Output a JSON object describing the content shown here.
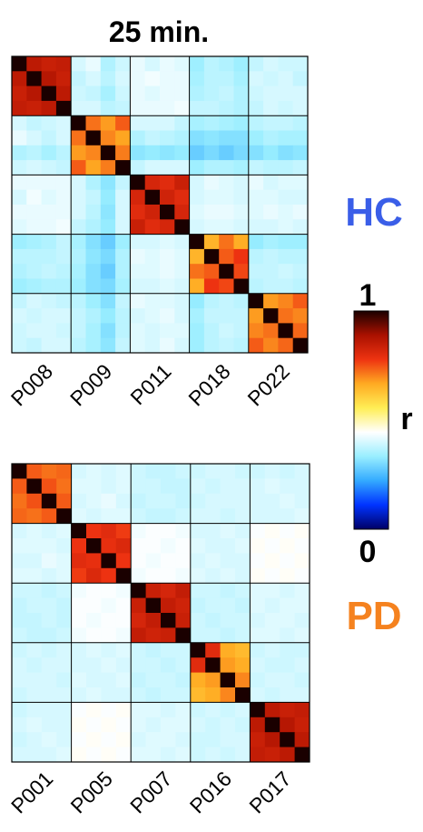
{
  "chart_data": {
    "type": "heatmap",
    "title": "25 min.",
    "colorbar": {
      "label": "r",
      "min_label": "1",
      "max_label": "0",
      "range": [
        0,
        1
      ],
      "stops": [
        "#000066",
        "#0033ff",
        "#33aaff",
        "#99eeff",
        "#ffffff",
        "#ffee55",
        "#ffaa22",
        "#ee3311",
        "#aa1100",
        "#1a0000"
      ]
    },
    "blocks_per_subject": 4,
    "panels": [
      {
        "group": "HC",
        "group_color": "#3a5ee8",
        "subjects": [
          "P008",
          "P009",
          "P011",
          "P018",
          "P022"
        ],
        "matrix": [
          [
            1.0,
            0.86,
            0.84,
            0.85,
            0.4,
            0.42,
            0.36,
            0.39,
            0.42,
            0.4,
            0.42,
            0.41,
            0.34,
            0.37,
            0.36,
            0.34,
            0.38,
            0.4,
            0.39,
            0.39
          ],
          [
            0.86,
            1.0,
            0.87,
            0.84,
            0.38,
            0.4,
            0.37,
            0.4,
            0.42,
            0.43,
            0.42,
            0.42,
            0.35,
            0.37,
            0.37,
            0.35,
            0.4,
            0.39,
            0.4,
            0.38
          ],
          [
            0.84,
            0.87,
            1.0,
            0.86,
            0.39,
            0.38,
            0.35,
            0.39,
            0.42,
            0.41,
            0.42,
            0.42,
            0.36,
            0.37,
            0.38,
            0.36,
            0.39,
            0.4,
            0.4,
            0.4
          ],
          [
            0.85,
            0.84,
            0.86,
            1.0,
            0.4,
            0.4,
            0.37,
            0.38,
            0.42,
            0.42,
            0.42,
            0.43,
            0.38,
            0.38,
            0.37,
            0.36,
            0.38,
            0.4,
            0.39,
            0.4
          ],
          [
            0.4,
            0.38,
            0.39,
            0.4,
            1.0,
            0.72,
            0.68,
            0.74,
            0.4,
            0.4,
            0.4,
            0.38,
            0.35,
            0.36,
            0.35,
            0.34,
            0.37,
            0.38,
            0.38,
            0.37
          ],
          [
            0.42,
            0.4,
            0.38,
            0.4,
            0.72,
            1.0,
            0.7,
            0.67,
            0.36,
            0.38,
            0.37,
            0.36,
            0.31,
            0.32,
            0.31,
            0.31,
            0.34,
            0.36,
            0.35,
            0.35
          ],
          [
            0.36,
            0.37,
            0.35,
            0.37,
            0.68,
            0.7,
            1.0,
            0.71,
            0.32,
            0.33,
            0.32,
            0.33,
            0.28,
            0.3,
            0.28,
            0.3,
            0.31,
            0.33,
            0.31,
            0.32
          ],
          [
            0.39,
            0.4,
            0.39,
            0.38,
            0.74,
            0.67,
            0.71,
            1.0,
            0.38,
            0.4,
            0.4,
            0.4,
            0.34,
            0.36,
            0.36,
            0.35,
            0.38,
            0.37,
            0.37,
            0.38
          ],
          [
            0.42,
            0.42,
            0.42,
            0.42,
            0.4,
            0.36,
            0.32,
            0.38,
            1.0,
            0.82,
            0.8,
            0.84,
            0.4,
            0.42,
            0.41,
            0.4,
            0.42,
            0.4,
            0.41,
            0.41
          ],
          [
            0.4,
            0.43,
            0.41,
            0.42,
            0.4,
            0.38,
            0.33,
            0.4,
            0.82,
            1.0,
            0.83,
            0.8,
            0.4,
            0.41,
            0.41,
            0.4,
            0.41,
            0.41,
            0.4,
            0.4
          ],
          [
            0.42,
            0.42,
            0.42,
            0.42,
            0.4,
            0.37,
            0.32,
            0.4,
            0.8,
            0.83,
            1.0,
            0.82,
            0.41,
            0.42,
            0.42,
            0.41,
            0.41,
            0.42,
            0.41,
            0.42
          ],
          [
            0.41,
            0.42,
            0.42,
            0.43,
            0.38,
            0.36,
            0.33,
            0.4,
            0.84,
            0.8,
            0.82,
            1.0,
            0.4,
            0.41,
            0.41,
            0.4,
            0.4,
            0.4,
            0.41,
            0.4
          ],
          [
            0.34,
            0.35,
            0.36,
            0.38,
            0.35,
            0.31,
            0.28,
            0.34,
            0.4,
            0.4,
            0.41,
            0.4,
            1.0,
            0.65,
            0.72,
            0.66,
            0.33,
            0.35,
            0.34,
            0.34
          ],
          [
            0.37,
            0.37,
            0.37,
            0.38,
            0.36,
            0.32,
            0.3,
            0.36,
            0.42,
            0.41,
            0.42,
            0.41,
            0.65,
            1.0,
            0.74,
            0.78,
            0.37,
            0.38,
            0.37,
            0.37
          ],
          [
            0.36,
            0.37,
            0.38,
            0.37,
            0.35,
            0.31,
            0.28,
            0.36,
            0.41,
            0.41,
            0.42,
            0.41,
            0.72,
            0.74,
            1.0,
            0.76,
            0.38,
            0.38,
            0.39,
            0.38
          ],
          [
            0.34,
            0.35,
            0.36,
            0.36,
            0.34,
            0.31,
            0.3,
            0.35,
            0.4,
            0.4,
            0.41,
            0.4,
            0.66,
            0.78,
            0.76,
            1.0,
            0.37,
            0.38,
            0.38,
            0.37
          ],
          [
            0.38,
            0.4,
            0.39,
            0.38,
            0.37,
            0.34,
            0.31,
            0.38,
            0.42,
            0.41,
            0.41,
            0.4,
            0.33,
            0.37,
            0.38,
            0.37,
            1.0,
            0.68,
            0.7,
            0.74
          ],
          [
            0.4,
            0.39,
            0.4,
            0.4,
            0.38,
            0.36,
            0.33,
            0.37,
            0.4,
            0.41,
            0.42,
            0.4,
            0.35,
            0.38,
            0.38,
            0.38,
            0.68,
            1.0,
            0.72,
            0.7
          ],
          [
            0.39,
            0.4,
            0.4,
            0.39,
            0.38,
            0.35,
            0.31,
            0.37,
            0.41,
            0.4,
            0.41,
            0.41,
            0.34,
            0.37,
            0.39,
            0.38,
            0.7,
            0.72,
            1.0,
            0.73
          ],
          [
            0.39,
            0.38,
            0.4,
            0.4,
            0.37,
            0.35,
            0.32,
            0.38,
            0.41,
            0.4,
            0.42,
            0.4,
            0.34,
            0.37,
            0.38,
            0.37,
            0.74,
            0.7,
            0.73,
            1.0
          ]
        ]
      },
      {
        "group": "PD",
        "group_color": "#f5821f",
        "subjects": [
          "P001",
          "P005",
          "P007",
          "P016",
          "P017"
        ],
        "matrix": [
          [
            1.0,
            0.74,
            0.72,
            0.73,
            0.4,
            0.41,
            0.4,
            0.41,
            0.39,
            0.38,
            0.38,
            0.39,
            0.39,
            0.4,
            0.4,
            0.39,
            0.39,
            0.4,
            0.39,
            0.4
          ],
          [
            0.74,
            1.0,
            0.75,
            0.72,
            0.41,
            0.41,
            0.4,
            0.41,
            0.39,
            0.39,
            0.38,
            0.38,
            0.4,
            0.39,
            0.4,
            0.4,
            0.4,
            0.41,
            0.4,
            0.4
          ],
          [
            0.72,
            0.75,
            1.0,
            0.74,
            0.4,
            0.41,
            0.42,
            0.4,
            0.38,
            0.39,
            0.39,
            0.38,
            0.39,
            0.4,
            0.4,
            0.4,
            0.4,
            0.4,
            0.41,
            0.4
          ],
          [
            0.73,
            0.72,
            0.74,
            1.0,
            0.41,
            0.4,
            0.41,
            0.41,
            0.39,
            0.38,
            0.38,
            0.39,
            0.4,
            0.4,
            0.39,
            0.4,
            0.4,
            0.4,
            0.4,
            0.41
          ],
          [
            0.4,
            0.41,
            0.4,
            0.41,
            1.0,
            0.78,
            0.8,
            0.77,
            0.43,
            0.44,
            0.44,
            0.43,
            0.4,
            0.4,
            0.41,
            0.4,
            0.44,
            0.45,
            0.44,
            0.45
          ],
          [
            0.41,
            0.41,
            0.41,
            0.4,
            0.78,
            1.0,
            0.79,
            0.81,
            0.44,
            0.44,
            0.43,
            0.44,
            0.41,
            0.4,
            0.4,
            0.41,
            0.45,
            0.44,
            0.45,
            0.44
          ],
          [
            0.4,
            0.4,
            0.42,
            0.41,
            0.8,
            0.79,
            1.0,
            0.78,
            0.44,
            0.43,
            0.44,
            0.44,
            0.4,
            0.41,
            0.4,
            0.4,
            0.44,
            0.45,
            0.44,
            0.45
          ],
          [
            0.41,
            0.41,
            0.4,
            0.41,
            0.77,
            0.81,
            0.78,
            1.0,
            0.43,
            0.44,
            0.44,
            0.43,
            0.41,
            0.4,
            0.41,
            0.4,
            0.45,
            0.44,
            0.45,
            0.44
          ],
          [
            0.39,
            0.39,
            0.38,
            0.39,
            0.43,
            0.44,
            0.44,
            0.43,
            1.0,
            0.84,
            0.82,
            0.85,
            0.39,
            0.39,
            0.38,
            0.39,
            0.41,
            0.41,
            0.4,
            0.41
          ],
          [
            0.38,
            0.39,
            0.39,
            0.38,
            0.44,
            0.44,
            0.43,
            0.44,
            0.84,
            1.0,
            0.85,
            0.83,
            0.38,
            0.39,
            0.39,
            0.38,
            0.41,
            0.4,
            0.41,
            0.41
          ],
          [
            0.38,
            0.38,
            0.39,
            0.38,
            0.44,
            0.43,
            0.44,
            0.44,
            0.82,
            0.85,
            1.0,
            0.84,
            0.39,
            0.38,
            0.39,
            0.39,
            0.4,
            0.41,
            0.41,
            0.4
          ],
          [
            0.39,
            0.38,
            0.38,
            0.39,
            0.43,
            0.44,
            0.44,
            0.43,
            0.85,
            0.83,
            0.84,
            1.0,
            0.39,
            0.39,
            0.38,
            0.39,
            0.41,
            0.41,
            0.4,
            0.41
          ],
          [
            0.39,
            0.4,
            0.39,
            0.4,
            0.4,
            0.41,
            0.4,
            0.41,
            0.39,
            0.38,
            0.39,
            0.39,
            1.0,
            0.8,
            0.66,
            0.64,
            0.39,
            0.4,
            0.39,
            0.39
          ],
          [
            0.4,
            0.39,
            0.4,
            0.4,
            0.4,
            0.4,
            0.41,
            0.4,
            0.39,
            0.39,
            0.38,
            0.39,
            0.8,
            1.0,
            0.68,
            0.66,
            0.4,
            0.39,
            0.39,
            0.4
          ],
          [
            0.4,
            0.4,
            0.4,
            0.39,
            0.41,
            0.4,
            0.4,
            0.41,
            0.38,
            0.39,
            0.39,
            0.38,
            0.66,
            0.68,
            1.0,
            0.7,
            0.39,
            0.4,
            0.4,
            0.39
          ],
          [
            0.39,
            0.4,
            0.4,
            0.4,
            0.4,
            0.41,
            0.4,
            0.4,
            0.39,
            0.38,
            0.39,
            0.39,
            0.64,
            0.66,
            0.7,
            1.0,
            0.4,
            0.39,
            0.4,
            0.4
          ],
          [
            0.39,
            0.4,
            0.4,
            0.4,
            0.44,
            0.45,
            0.44,
            0.45,
            0.41,
            0.41,
            0.4,
            0.41,
            0.39,
            0.4,
            0.39,
            0.4,
            1.0,
            0.86,
            0.84,
            0.85
          ],
          [
            0.4,
            0.41,
            0.4,
            0.4,
            0.45,
            0.44,
            0.45,
            0.44,
            0.41,
            0.4,
            0.41,
            0.41,
            0.4,
            0.39,
            0.4,
            0.39,
            0.86,
            1.0,
            0.87,
            0.84
          ],
          [
            0.39,
            0.4,
            0.41,
            0.4,
            0.44,
            0.45,
            0.44,
            0.45,
            0.4,
            0.41,
            0.41,
            0.4,
            0.39,
            0.39,
            0.4,
            0.4,
            0.84,
            0.87,
            1.0,
            0.86
          ],
          [
            0.4,
            0.4,
            0.4,
            0.41,
            0.45,
            0.44,
            0.45,
            0.44,
            0.41,
            0.41,
            0.4,
            0.41,
            0.39,
            0.4,
            0.39,
            0.4,
            0.85,
            0.84,
            0.86,
            1.0
          ]
        ]
      }
    ]
  }
}
